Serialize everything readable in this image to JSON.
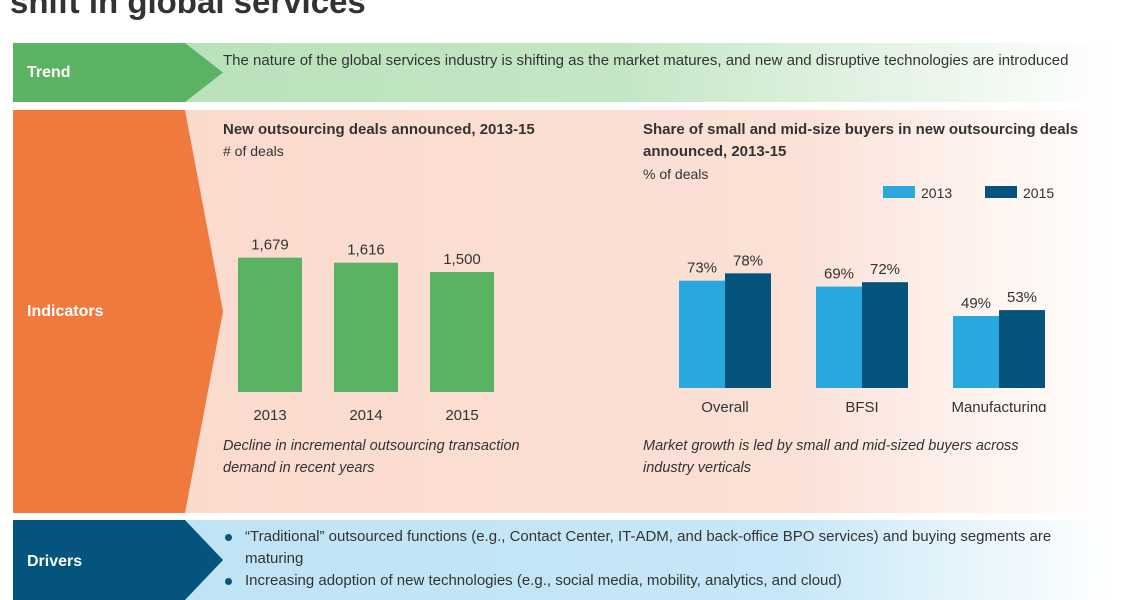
{
  "page": {
    "title": "shift in global services"
  },
  "trend": {
    "label": "Trend",
    "text": "The nature of the global services industry is shifting as the market matures, and new and disruptive technologies are introduced"
  },
  "indicators": {
    "label": "Indicators"
  },
  "drivers": {
    "label": "Drivers",
    "items": [
      "“Traditional” outsourced functions (e.g., Contact Center, IT-ADM, and back-office BPO services) and buying segments are maturing",
      "Increasing adoption of new technologies (e.g., social media, mobility, analytics, and cloud)"
    ]
  },
  "chart_data": [
    {
      "type": "bar",
      "title": "New outsourcing deals announced, 2013-15",
      "subtitle": "# of deals",
      "categories": [
        "2013",
        "2014",
        "2015"
      ],
      "values": [
        1679,
        1616,
        1500
      ],
      "value_labels": [
        "1,679",
        "1,616",
        "1,500"
      ],
      "ylim": [
        0,
        1750
      ],
      "color": "#5ab362",
      "note": "Decline in incremental outsourcing transaction demand in recent years"
    },
    {
      "type": "bar",
      "title": "Share of small and mid-size buyers in new outsourcing deals announced, 2013-15",
      "subtitle": "% of deals",
      "categories": [
        "Overall",
        "BFSI",
        "Manufacturing"
      ],
      "series": [
        {
          "name": "2013",
          "values": [
            73,
            69,
            49
          ],
          "value_labels": [
            "73%",
            "69%",
            "49%"
          ],
          "color": "#29a8e0"
        },
        {
          "name": "2015",
          "values": [
            78,
            72,
            53
          ],
          "value_labels": [
            "78%",
            "72%",
            "53%"
          ],
          "color": "#05547e"
        }
      ],
      "ylim": [
        0,
        100
      ],
      "legend": "top-right",
      "note": "Market growth is led by small and mid-sized buyers across industry verticals"
    }
  ]
}
